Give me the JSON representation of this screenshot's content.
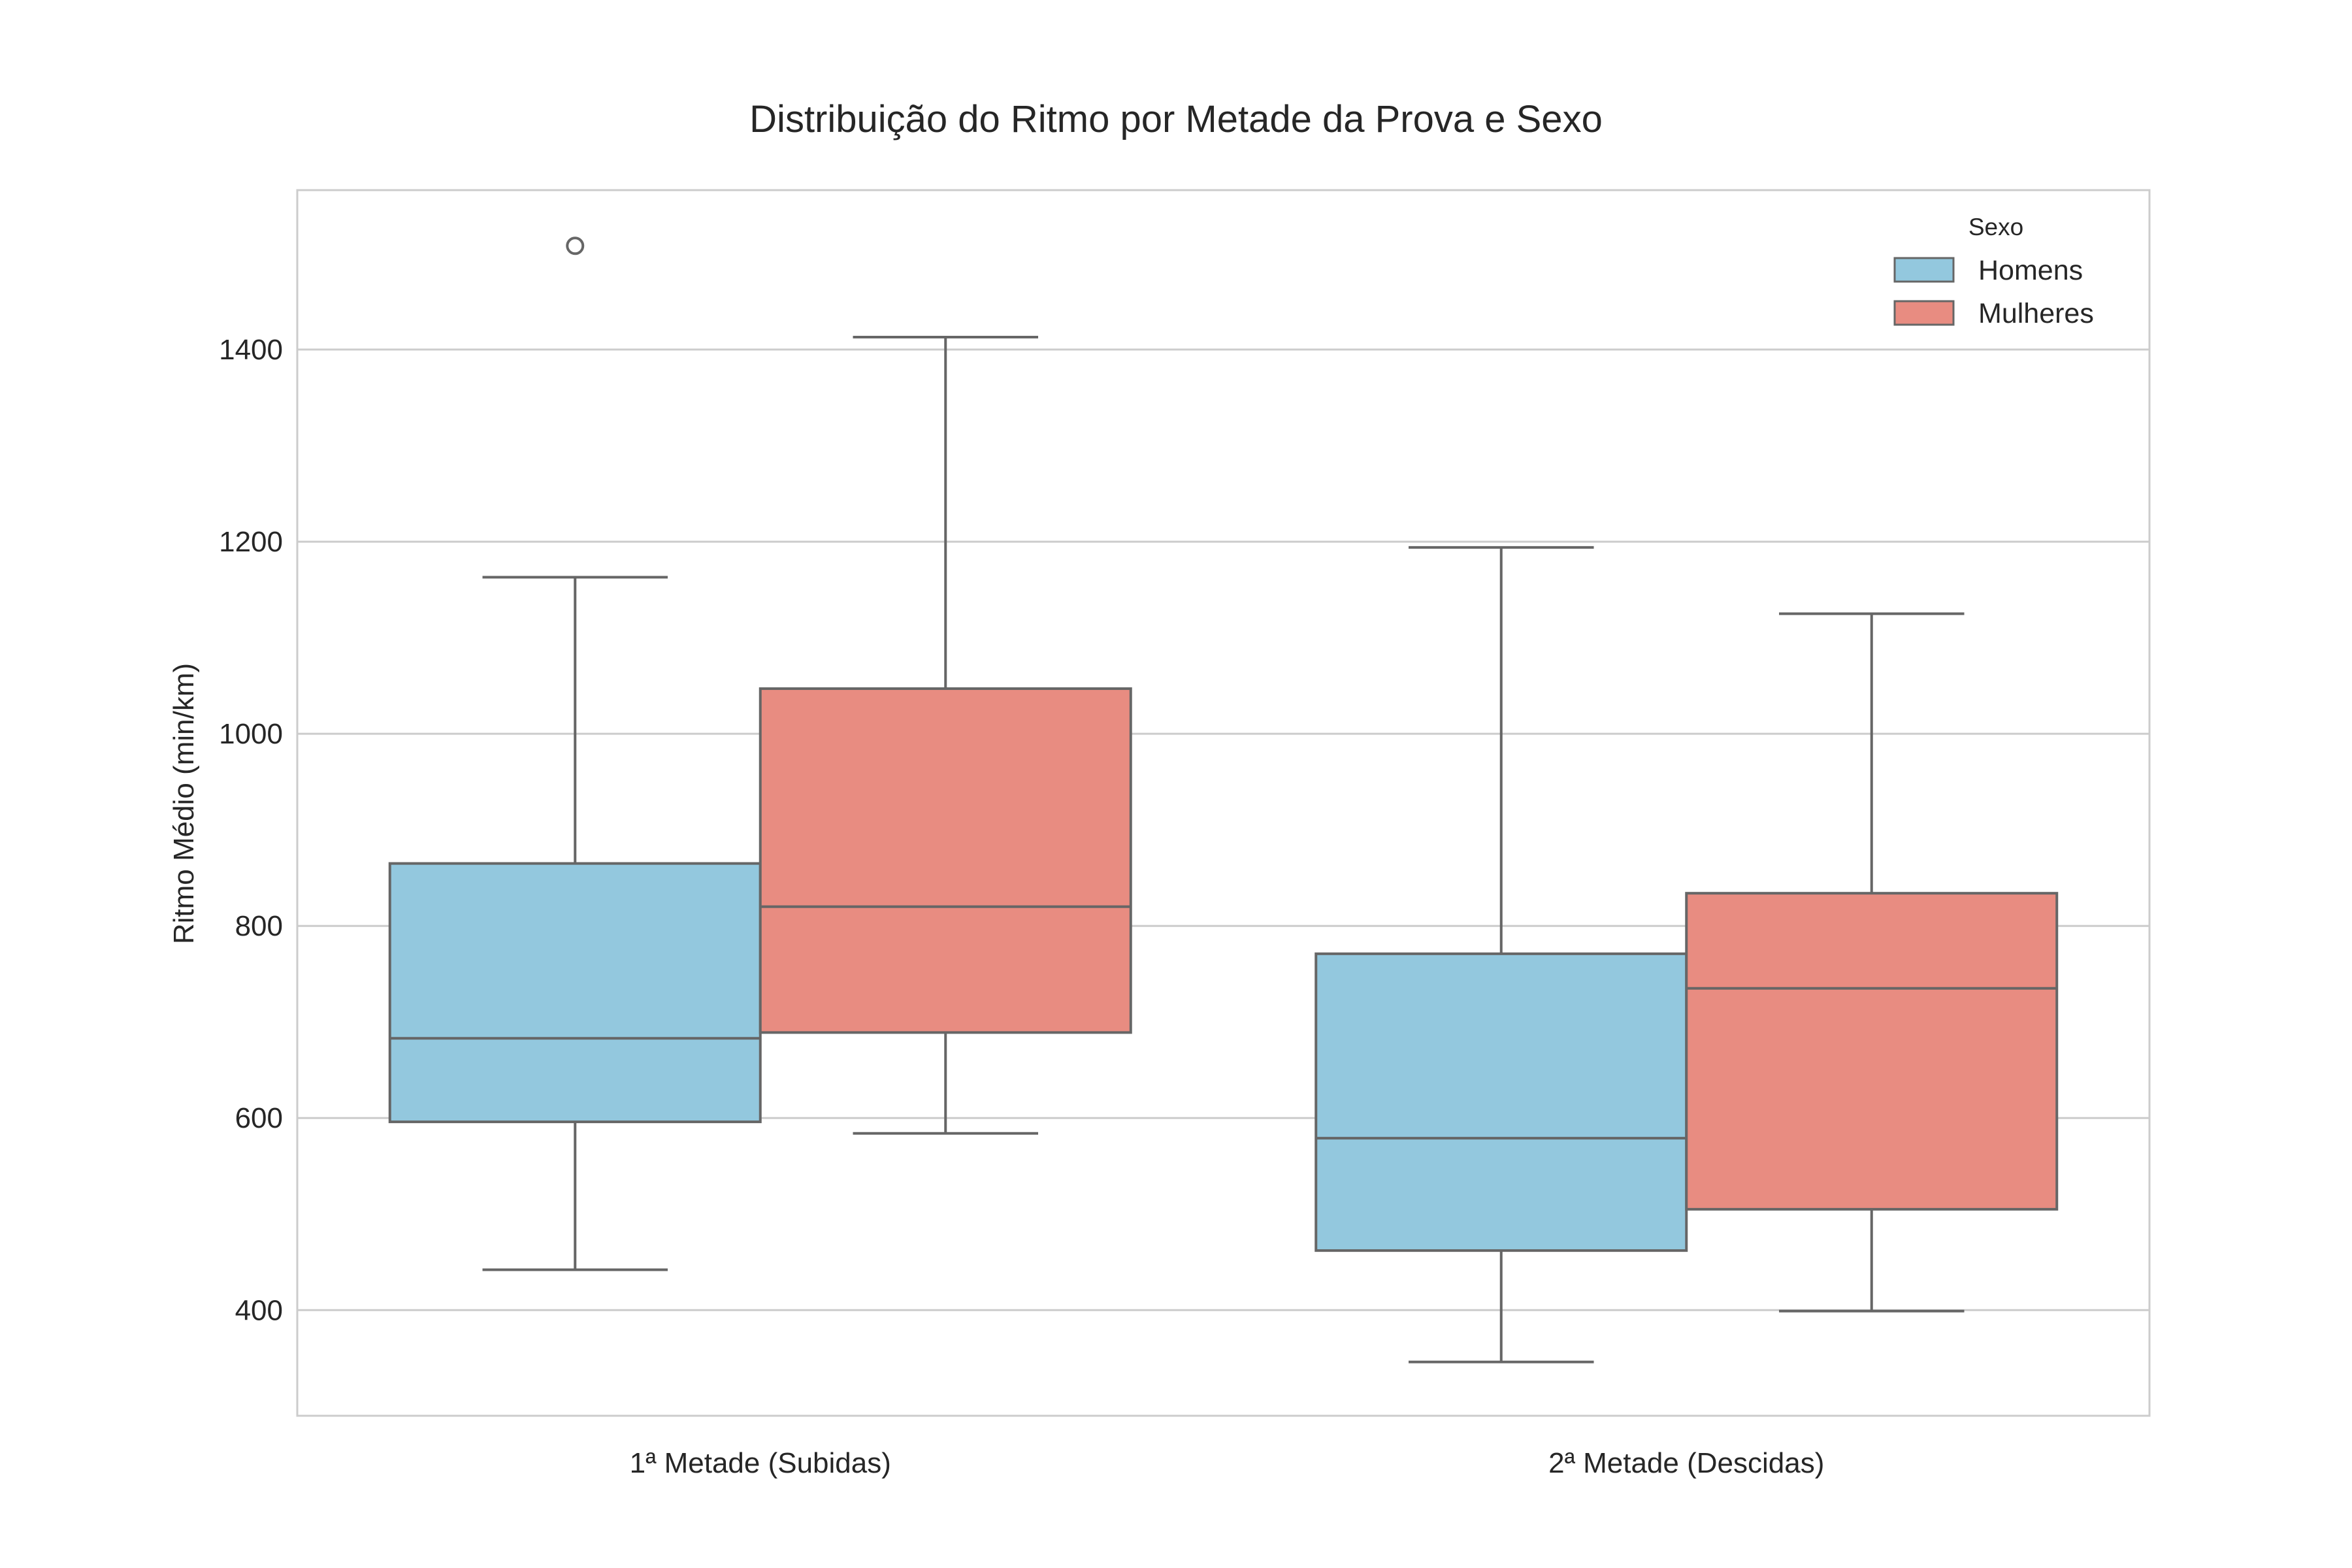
{
  "chart_data": {
    "type": "boxplot",
    "title": "Distribuição do Ritmo por Metade da Prova e Sexo",
    "xlabel": "",
    "ylabel": "Ritmo Médio (min/km)",
    "ylim": [
      290,
      1566
    ],
    "yticks": [
      400,
      600,
      800,
      1000,
      1200,
      1400
    ],
    "grid": "horizontal",
    "categories": [
      "1ª Metade (Subidas)",
      "2ª Metade (Descidas)"
    ],
    "legend": {
      "title": "Sexo",
      "position": "top-right"
    },
    "series": [
      {
        "name": "Homens",
        "color": "#93c8de",
        "boxes": [
          {
            "whisker_low": 442,
            "q1": 596,
            "median": 683,
            "q3": 865,
            "whisker_high": 1163,
            "outliers": [
              1508
            ]
          },
          {
            "whisker_low": 346,
            "q1": 462,
            "median": 579,
            "q3": 771,
            "whisker_high": 1194,
            "outliers": []
          }
        ]
      },
      {
        "name": "Mulheres",
        "color": "#e88c81",
        "boxes": [
          {
            "whisker_low": 584,
            "q1": 689,
            "median": 820,
            "q3": 1047,
            "whisker_high": 1413,
            "outliers": []
          },
          {
            "whisker_low": 399,
            "q1": 505,
            "median": 735,
            "q3": 834,
            "whisker_high": 1125,
            "outliers": []
          }
        ]
      }
    ]
  }
}
